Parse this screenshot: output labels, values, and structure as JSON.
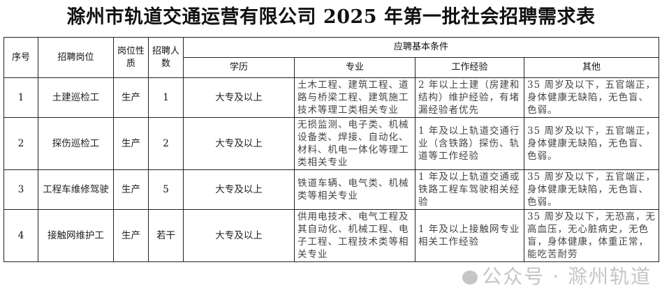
{
  "title": "滁州市轨道交通运营有限公司 2025 年第一批社会招聘需求表",
  "headers": {
    "index": "序号",
    "position": "招聘岗位",
    "nature": "岗位性质",
    "count": "招聘人数",
    "requirements": "应聘基本条件",
    "education": "学历",
    "major": "专业",
    "experience": "工作经验",
    "other": "其他"
  },
  "rows": [
    {
      "index": "1",
      "position": "土建巡检工",
      "nature": "生产",
      "count": "1",
      "education": "大专及以上",
      "major": "土木工程、建筑工程、道路与桥梁工程、建筑施工技术等理工类相关专业",
      "experience": "2 年以上土建（房建和结构）维护经验，有堵漏经验者优先",
      "other": "35 周岁及以下，五官端正，身体健康无缺陷，无色盲、色弱。"
    },
    {
      "index": "2",
      "position": "探伤巡检工",
      "nature": "生产",
      "count": "2",
      "education": "大专及以上",
      "major": "无损监测、电子类、机械设备类、焊接、自动化、材料、机电一体化等理工类相关专业",
      "experience": "1 年及以上轨道交通行业（含铁路）探伤、轨道等工作经验",
      "other": "35 周岁及以下，五官端正，身体健康无缺陷，无色盲、色弱。"
    },
    {
      "index": "3",
      "position": "工程车维修驾驶",
      "nature": "生产",
      "count": "5",
      "education": "大专及以上",
      "major": "铁道车辆、电气类、机械类等相关专业",
      "experience": "1 年及以上轨道交通或铁路工程车驾驶相关经验",
      "other": "35 周岁及以下，五官端正，身体健康无缺陷，无色盲、色弱。"
    },
    {
      "index": "4",
      "position": "接触网维护工",
      "nature": "生产",
      "count": "若干",
      "education": "大专及以上",
      "major": "供用电技术、电气工程及其自动化、机械工程、电子工程、工程技术类等相关专业",
      "experience": "1 年及以上接触网专业相关工作经验",
      "other": "35 周岁及以下，无恐高，无高血压，无心脏病史，无色盲，身体健康，体重正常，能吃苦耐劳"
    }
  ],
  "watermark": "公众号 · 滁州轨道"
}
